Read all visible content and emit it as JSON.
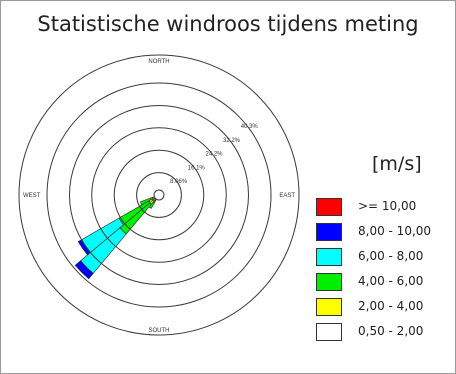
{
  "title": "Statistische windroos tijdens meting",
  "unit_label": "[m/s]",
  "chart_data": {
    "type": "wind-rose",
    "title": "Statistische windroos tijdens meting",
    "directions": [
      "NORTH",
      "EAST",
      "SOUTH",
      "WEST"
    ],
    "ring_labels": [
      "8.06%",
      "16.1%",
      "24.2%",
      "32.2%",
      "40.3%"
    ],
    "ring_values": [
      8.06,
      16.1,
      24.2,
      32.2,
      40.3
    ],
    "legend_title": "[m/s]",
    "speed_bins": [
      {
        "label": ">= 10,00",
        "color": "#ff0000"
      },
      {
        "label": "8,00 - 10,00",
        "color": "#0000ff"
      },
      {
        "label": "6,00 - 8,00",
        "color": "#00ffff"
      },
      {
        "label": "4,00 - 6,00",
        "color": "#00ee00"
      },
      {
        "label": "2,00 - 4,00",
        "color": "#ffff00"
      },
      {
        "label": "0,50 - 2,00",
        "color": "#ffffff"
      }
    ],
    "sectors": [
      {
        "direction_deg": 225,
        "percent": {
          "0.5-2": 0.6,
          "2-4": 1.6,
          "4-6": 14.0,
          "6-8": 18.5,
          "8-10": 2.5,
          ">=10": 0.0
        }
      },
      {
        "direction_deg": 235,
        "percent": {
          "0.5-2": 0.6,
          "2-4": 1.4,
          "4-6": 12.5,
          "6-8": 15.5,
          "8-10": 1.4,
          ">=10": 0.0
        }
      },
      {
        "direction_deg": 245,
        "percent": {
          "0.5-2": 0.4,
          "2-4": 0.6,
          "4-6": 4.0,
          "6-8": 0.0,
          "8-10": 0.0,
          ">=10": 0.0
        }
      },
      {
        "direction_deg": 215,
        "percent": {
          "0.5-2": 0.4,
          "2-4": 0.5,
          "4-6": 2.5,
          "6-8": 0.0,
          "8-10": 0.0,
          ">=10": 0.0
        }
      }
    ]
  }
}
